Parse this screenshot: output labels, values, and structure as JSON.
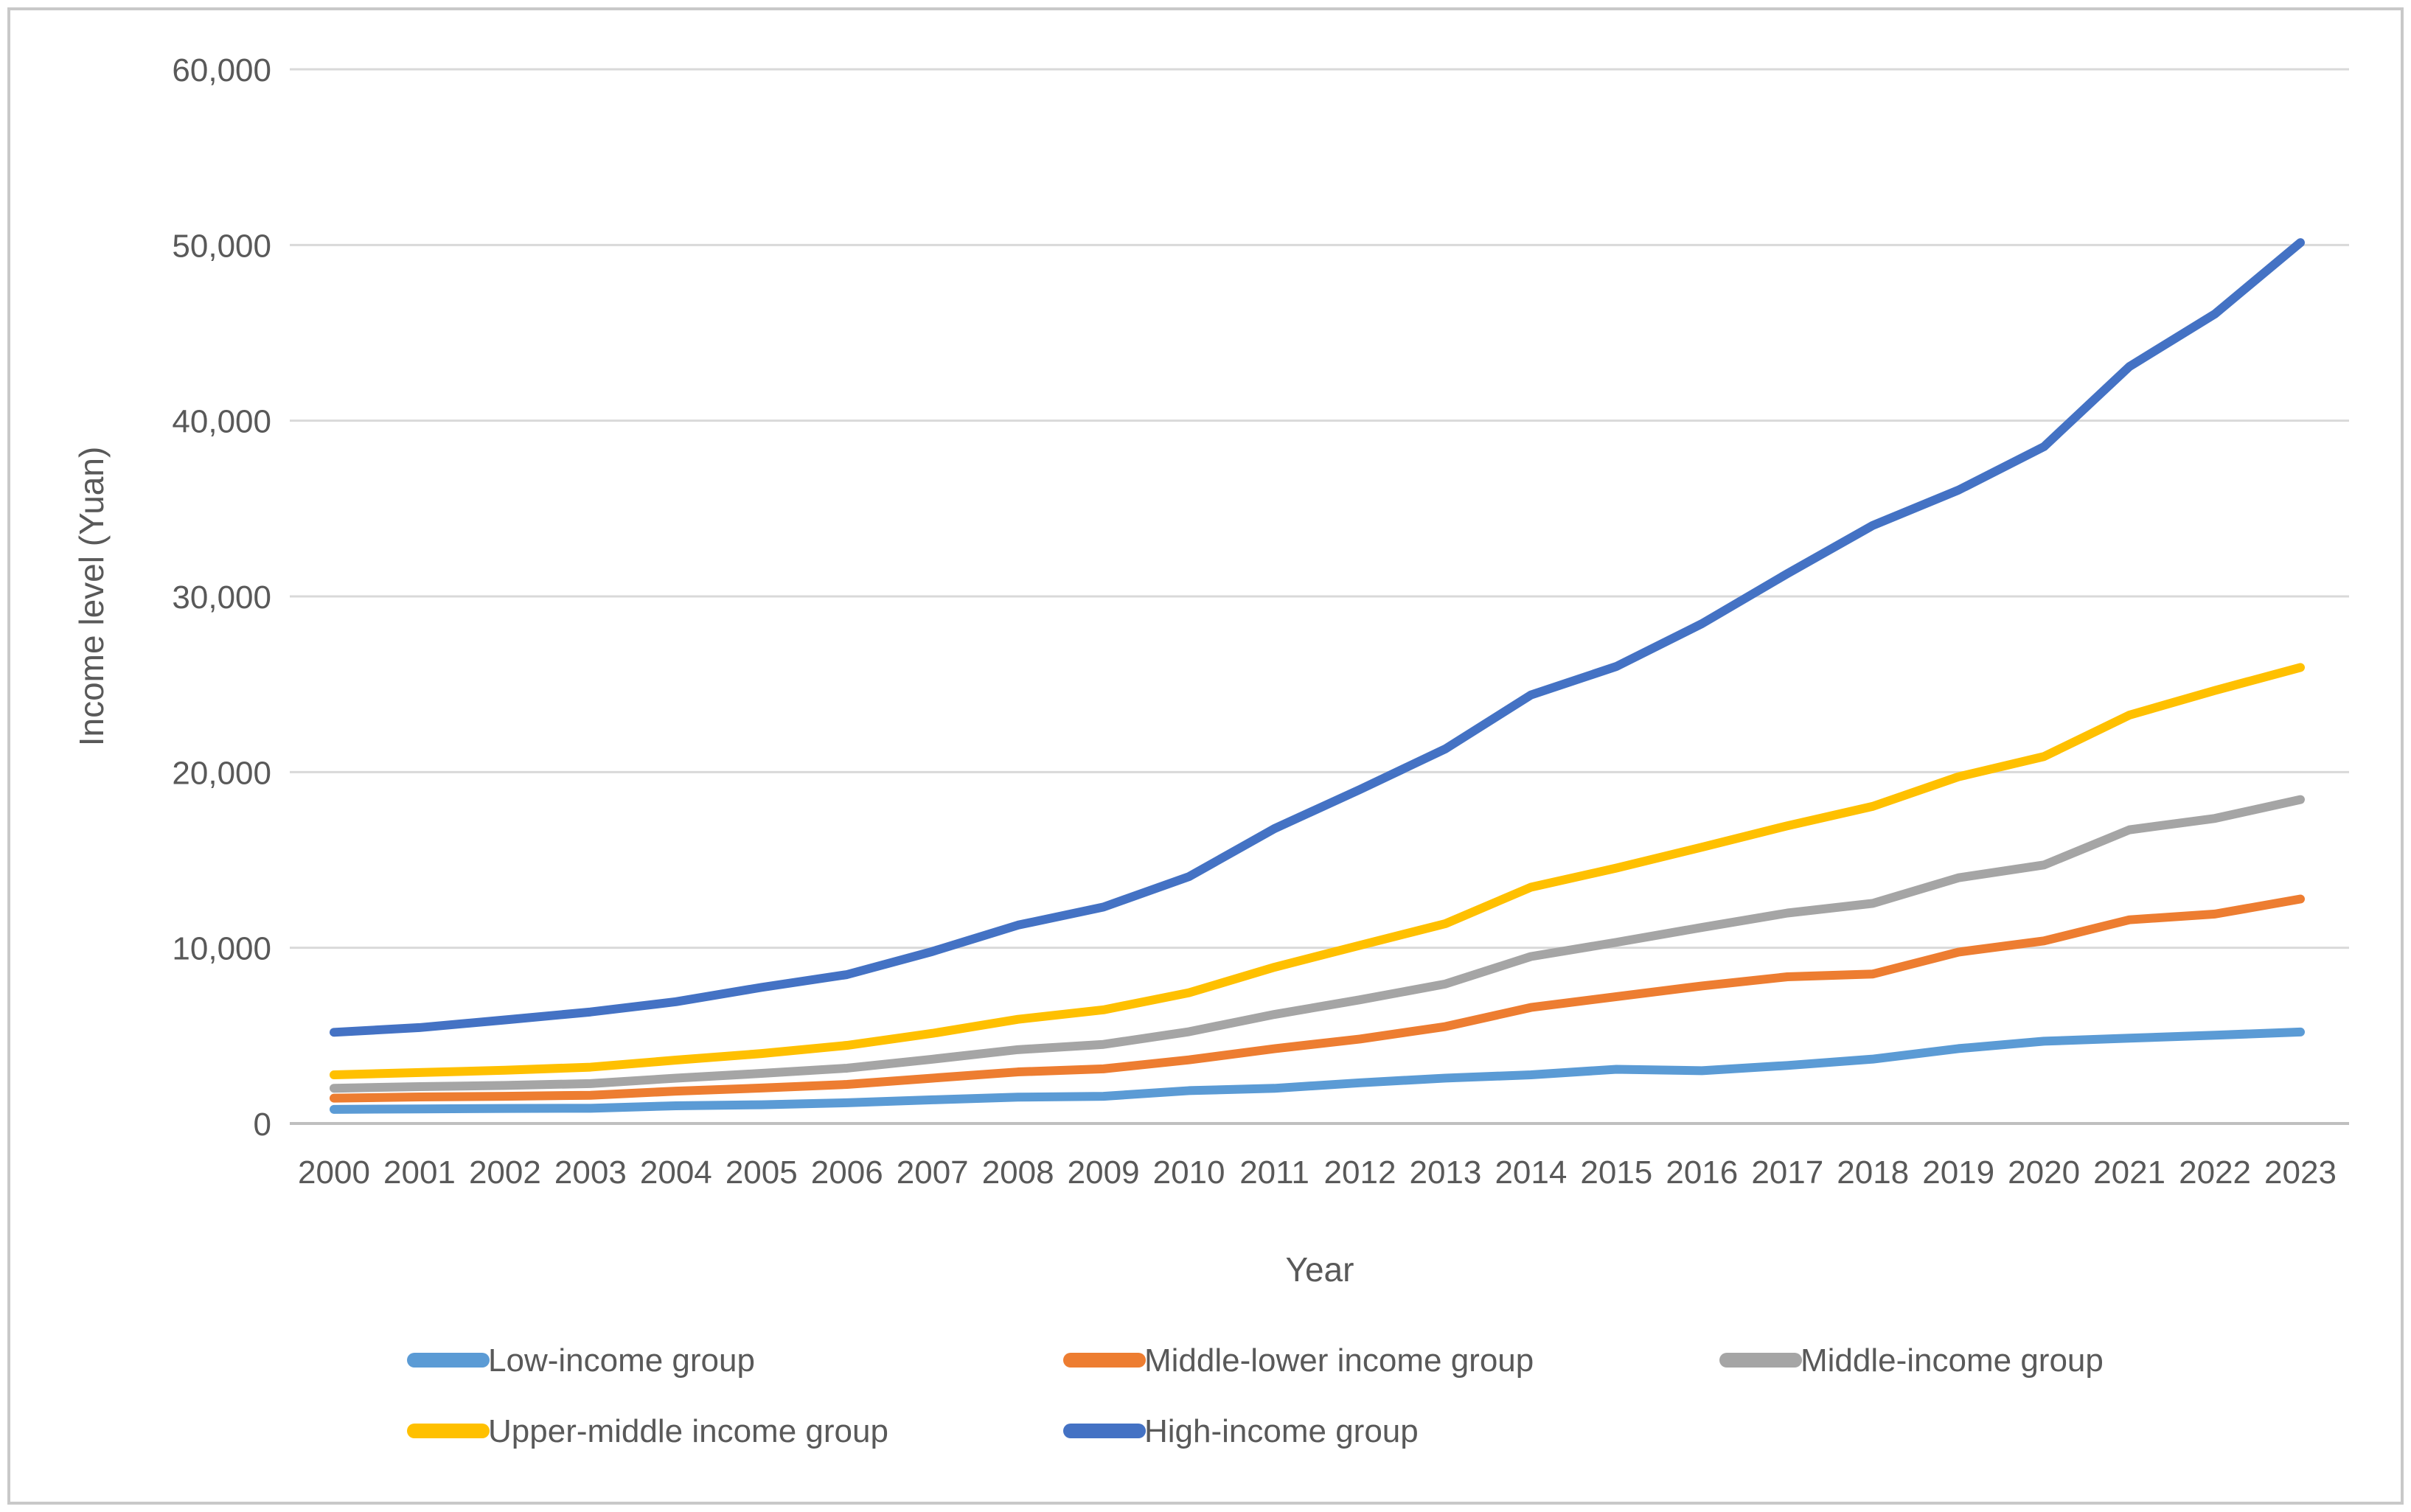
{
  "chart_data": {
    "type": "line",
    "title": "",
    "xlabel": "Year",
    "ylabel": "Income level (Yuan)",
    "x": [
      2000,
      2001,
      2002,
      2003,
      2004,
      2005,
      2006,
      2007,
      2008,
      2009,
      2010,
      2011,
      2012,
      2013,
      2014,
      2015,
      2016,
      2017,
      2018,
      2019,
      2020,
      2021,
      2022,
      2023
    ],
    "ylim": [
      0,
      60000
    ],
    "y_tick_interval": 10000,
    "y_tick_labels": [
      "0",
      "10,000",
      "20,000",
      "30,000",
      "40,000",
      "50,000",
      "60,000"
    ],
    "grid": true,
    "legend_position": "bottom",
    "series": [
      {
        "name": "Low-income group",
        "color": "#5B9BD5",
        "values": [
          802,
          831,
          857,
          866,
          1007,
          1067,
          1182,
          1347,
          1500,
          1549,
          1870,
          2001,
          2316,
          2583,
          2768,
          3086,
          3007,
          3302,
          3666,
          4263,
          4682,
          4856,
          5025,
          5206
        ]
      },
      {
        "name": "Middle-lower income group",
        "color": "#ED7D31",
        "values": [
          1442,
          1508,
          1548,
          1607,
          1842,
          2018,
          2222,
          2582,
          2935,
          3110,
          3621,
          4256,
          4808,
          5516,
          6604,
          7221,
          7828,
          8349,
          8509,
          9754,
          10392,
          11593,
          11921,
          12776
        ]
      },
      {
        "name": "Middle-income group",
        "color": "#A5A5A5",
        "values": [
          2005,
          2099,
          2164,
          2273,
          2579,
          2851,
          3149,
          3659,
          4203,
          4502,
          5222,
          6208,
          7041,
          7942,
          9504,
          10311,
          11159,
          11979,
          12530,
          13984,
          14712,
          16715,
          17364,
          18437
        ]
      },
      {
        "name": "Upper-middle income group",
        "color": "#FFC000",
        "values": [
          2768,
          2900,
          3031,
          3207,
          3608,
          3980,
          4447,
          5130,
          5929,
          6468,
          7441,
          8894,
          10142,
          11373,
          13449,
          14537,
          15727,
          16944,
          18052,
          19733,
          20885,
          23245,
          24646,
          25954
        ]
      },
      {
        "name": "High-income group",
        "color": "#4472C4",
        "values": [
          5190,
          5458,
          5896,
          6347,
          6931,
          7747,
          8475,
          9791,
          11290,
          12319,
          14050,
          16783,
          19009,
          21324,
          24391,
          26014,
          28448,
          31299,
          34043,
          36049,
          38520,
          43082,
          46075,
          50136
        ]
      }
    ]
  },
  "colors": {
    "gridline": "#D9D9D9",
    "axis_line": "#BFBFBF",
    "tick_text": "#595959",
    "frame_border": "#C9C9C9",
    "background": "#FFFFFF"
  }
}
